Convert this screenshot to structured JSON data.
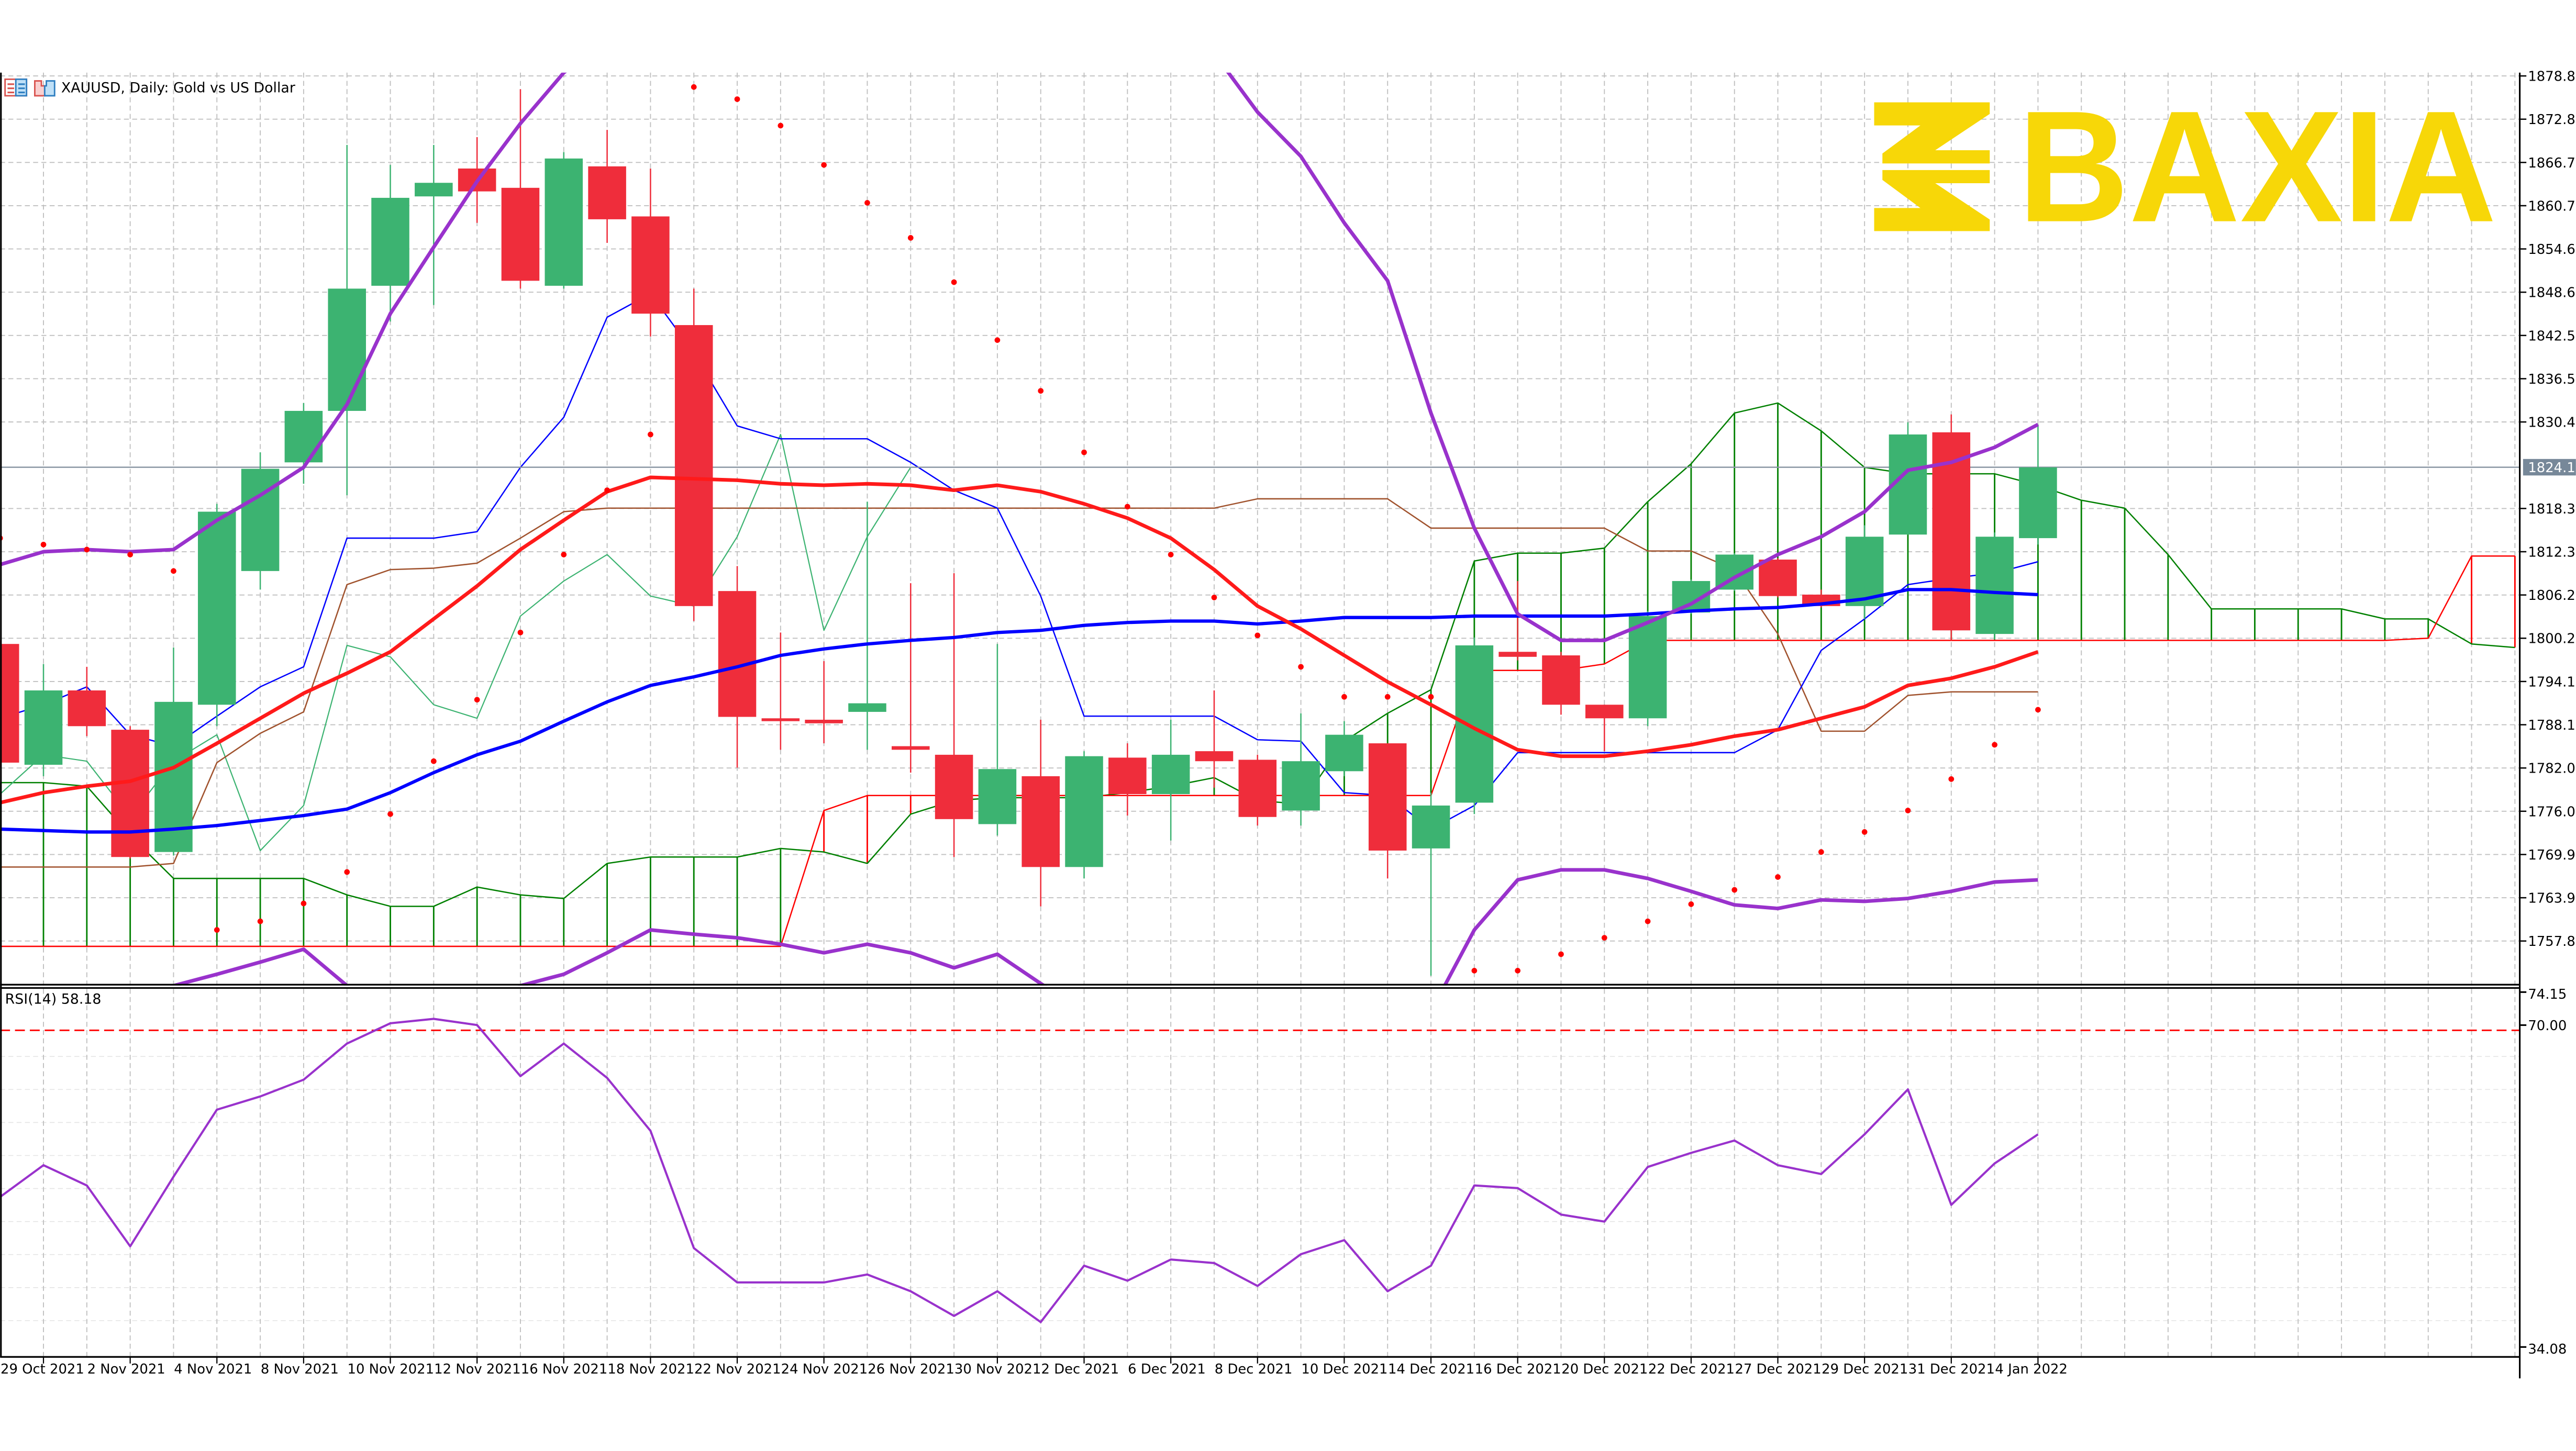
{
  "header": {
    "title": "XAUUSD, Daily:  Gold vs US Dollar",
    "icons": [
      "market-watch-icon",
      "chart-window-icon"
    ]
  },
  "logo": {
    "text": "BAXIA",
    "color": "#F7D708"
  },
  "colors": {
    "bull": "#3CB371",
    "bear": "#EF2D3B",
    "ma_fast": "#FF1A1A",
    "ma_slow": "#0000FF",
    "band": "#9932CC",
    "sar": "#FF0000",
    "tenkan": "#0000FF",
    "kijun": "#A0522D",
    "chikou": "#3CB371",
    "span_a": "#008000",
    "span_b": "#FF0000",
    "rsi": "#9932CC",
    "rsi_level": "#FF0000",
    "grid": "#C0C0C0",
    "price_tag": "#778899"
  },
  "price_axis": {
    "ticks": [
      "1878.85",
      "1872.80",
      "1866.75",
      "1860.70",
      "1854.65",
      "1848.60",
      "1842.55",
      "1836.50",
      "1830.45",
      "1818.35",
      "1812.30",
      "1806.25",
      "1800.20",
      "1794.15",
      "1788.10",
      "1782.05",
      "1776.00",
      "1769.95",
      "1763.90",
      "1757.85"
    ],
    "current_price": "1824.12"
  },
  "rsi_panel": {
    "label": "RSI(14) 58.18",
    "axis_top": "74.15",
    "level": "70.00",
    "axis_bottom": "34.08"
  },
  "x_tick_labels": [
    "29 Oct 2021",
    "2 Nov 2021",
    "4 Nov 2021",
    "8 Nov 2021",
    "10 Nov 2021",
    "12 Nov 2021",
    "16 Nov 2021",
    "18 Nov 2021",
    "22 Nov 2021",
    "24 Nov 2021",
    "26 Nov 2021",
    "30 Nov 2021",
    "2 Dec 2021",
    "6 Dec 2021",
    "8 Dec 2021",
    "10 Dec 2021",
    "14 Dec 2021",
    "16 Dec 2021",
    "20 Dec 2021",
    "22 Dec 2021",
    "27 Dec 2021",
    "29 Dec 2021",
    "31 Dec 2021",
    "4 Jan 2022"
  ],
  "chart_data": [
    {
      "type": "candlestick",
      "title": "XAUUSD, Daily:  Gold vs US Dollar",
      "ylim": [
        1751.9,
        1880.0
      ],
      "grid": true,
      "fields": [
        "open",
        "high",
        "low",
        "close"
      ],
      "candles": [
        [
          1799.4,
          1799.9,
          1782.1,
          1782.8
        ],
        [
          1782.5,
          1796.6,
          1780.9,
          1792.9
        ],
        [
          1792.9,
          1796.2,
          1786.5,
          1787.9
        ],
        [
          1787.4,
          1787.9,
          1769.4,
          1769.6
        ],
        [
          1770.3,
          1798.9,
          1769.8,
          1791.3
        ],
        [
          1790.9,
          1819.0,
          1787.9,
          1817.9
        ],
        [
          1809.6,
          1826.2,
          1807.0,
          1823.9
        ],
        [
          1824.8,
          1833.1,
          1821.8,
          1832.0
        ],
        [
          1832.0,
          1869.2,
          1820.2,
          1849.1
        ],
        [
          1849.5,
          1866.4,
          1844.5,
          1861.8
        ],
        [
          1862.0,
          1869.2,
          1846.8,
          1863.9
        ],
        [
          1865.9,
          1870.3,
          1858.3,
          1862.7
        ],
        [
          1863.2,
          1877.0,
          1849.1,
          1850.2
        ],
        [
          1849.5,
          1868.2,
          1849.1,
          1867.3
        ],
        [
          1866.2,
          1871.3,
          1855.5,
          1858.8
        ],
        [
          1859.2,
          1865.9,
          1842.4,
          1845.6
        ],
        [
          1844.0,
          1849.1,
          1802.6,
          1804.7
        ],
        [
          1806.8,
          1810.3,
          1782.1,
          1789.2
        ],
        [
          1789.0,
          1801.0,
          1784.6,
          1788.6
        ],
        [
          1788.8,
          1797.0,
          1785.5,
          1788.3
        ],
        [
          1789.9,
          1819.3,
          1784.6,
          1791.1
        ],
        [
          1785.1,
          1807.9,
          1781.4,
          1784.6
        ],
        [
          1783.9,
          1809.3,
          1769.6,
          1774.9
        ],
        [
          1774.2,
          1799.4,
          1772.6,
          1781.9
        ],
        [
          1780.9,
          1788.8,
          1762.7,
          1768.2
        ],
        [
          1768.2,
          1784.4,
          1766.6,
          1783.7
        ],
        [
          1783.5,
          1785.5,
          1775.4,
          1778.4
        ],
        [
          1778.4,
          1788.8,
          1771.9,
          1783.9
        ],
        [
          1784.4,
          1792.9,
          1779.3,
          1783.0
        ],
        [
          1783.2,
          1783.9,
          1774.0,
          1775.2
        ],
        [
          1776.1,
          1789.7,
          1774.0,
          1783.0
        ],
        [
          1781.6,
          1788.6,
          1780.9,
          1786.7
        ],
        [
          1785.5,
          1785.5,
          1766.6,
          1770.5
        ],
        [
          1770.8,
          1778.6,
          1753.0,
          1776.8
        ],
        [
          1777.2,
          1800.3,
          1775.6,
          1799.2
        ],
        [
          1798.3,
          1808.2,
          1797.1,
          1797.6
        ],
        [
          1797.8,
          1798.3,
          1789.5,
          1790.9
        ],
        [
          1790.9,
          1790.9,
          1784.4,
          1789.0
        ],
        [
          1789.0,
          1804.0,
          1787.9,
          1803.3
        ],
        [
          1803.8,
          1808.4,
          1803.6,
          1808.2
        ],
        [
          1807.0,
          1812.1,
          1806.8,
          1811.9
        ],
        [
          1811.2,
          1811.4,
          1805.9,
          1806.1
        ],
        [
          1806.3,
          1807.0,
          1804.5,
          1804.7
        ],
        [
          1804.7,
          1816.0,
          1802.9,
          1814.4
        ],
        [
          1814.7,
          1830.4,
          1814.7,
          1828.7
        ],
        [
          1829.0,
          1831.5,
          1799.9,
          1801.3
        ],
        [
          1800.8,
          1815.0,
          1800.0,
          1814.4
        ],
        [
          1814.2,
          1830.1,
          1813.3,
          1824.1
        ]
      ],
      "overlays": {
        "ma_fast": [
          1777.2,
          1778.6,
          1779.5,
          1780.2,
          1782.1,
          1785.5,
          1789.0,
          1792.5,
          1795.3,
          1798.3,
          1802.9,
          1807.5,
          1812.6,
          1816.7,
          1820.7,
          1822.7,
          1822.5,
          1822.3,
          1821.8,
          1821.6,
          1821.8,
          1821.6,
          1820.9,
          1821.6,
          1820.7,
          1819.0,
          1817.0,
          1814.2,
          1809.8,
          1804.7,
          1801.5,
          1797.8,
          1794.1,
          1790.9,
          1787.6,
          1784.6,
          1783.7,
          1783.7,
          1784.4,
          1785.3,
          1786.5,
          1787.4,
          1789.0,
          1790.6,
          1793.6,
          1794.6,
          1796.2,
          1798.3
        ],
        "ma_slow": [
          1773.5,
          1773.3,
          1773.1,
          1773.1,
          1773.5,
          1774.0,
          1774.7,
          1775.4,
          1776.3,
          1778.6,
          1781.4,
          1783.9,
          1785.8,
          1788.6,
          1791.3,
          1793.6,
          1794.8,
          1796.2,
          1797.8,
          1798.7,
          1799.4,
          1799.9,
          1800.3,
          1801.0,
          1801.3,
          1802.0,
          1802.4,
          1802.6,
          1802.6,
          1802.2,
          1802.6,
          1803.1,
          1803.1,
          1803.1,
          1803.3,
          1803.3,
          1803.3,
          1803.3,
          1803.6,
          1804.0,
          1804.3,
          1804.5,
          1805.0,
          1805.7,
          1807.0,
          1807.0,
          1806.6,
          1806.3
        ],
        "band_upper": [
          1810.5,
          1812.3,
          1812.6,
          1812.3,
          1812.6,
          1816.7,
          1820.2,
          1824.1,
          1832.9,
          1845.6,
          1854.9,
          1864.1,
          1872.2,
          1879.3,
          1884,
          1888,
          1891,
          1893,
          1894,
          1894,
          1893,
          1892,
          1891,
          1890,
          1889,
          1888,
          1887,
          1885,
          1882,
          1873.8,
          1867.6,
          1858.3,
          1850.2,
          1831.7,
          1815.6,
          1803.6,
          1799.9,
          1799.9,
          1802.4,
          1805.0,
          1808.7,
          1811.9,
          1814.4,
          1817.9,
          1823.7,
          1824.8,
          1826.9,
          1830.1
        ],
        "band_lower": [
          1745,
          1746,
          1747,
          1748,
          1751.6,
          1753.2,
          1754.9,
          1756.7,
          1751.6,
          1746,
          1742,
          1745,
          1751.6,
          1753.2,
          1756.2,
          1759.4,
          1758.8,
          1758.3,
          1757.4,
          1756.2,
          1757.4,
          1756.2,
          1754.1,
          1756.0,
          1751.9,
          1748,
          1745,
          1743,
          1742,
          1740,
          1740,
          1742,
          1745,
          1748,
          1759.4,
          1766.4,
          1767.8,
          1767.8,
          1766.6,
          1764.8,
          1762.9,
          1762.4,
          1763.6,
          1763.4,
          1763.8,
          1764.8,
          1766.1,
          1766.4
        ],
        "parabolic_sar": [
          1814.2,
          1813.3,
          1812.6,
          1811.9,
          1809.6,
          1759.4,
          1760.6,
          1763.1,
          1767.5,
          1775.6,
          1783.0,
          1791.6,
          1801.0,
          1811.9,
          1820.9,
          1828.7,
          1877.3,
          1875.6,
          1871.9,
          1866.4,
          1861.1,
          1856.2,
          1850.0,
          1841.9,
          1834.8,
          1826.2,
          1818.6,
          1811.9,
          1805.9,
          1800.6,
          1796.2,
          1792.0,
          1792.0,
          1792.0,
          1753.7,
          1753.7,
          1756.0,
          1758.3,
          1760.6,
          1763.0,
          1765.0,
          1766.8,
          1770.3,
          1773.1,
          1776.1,
          1780.5,
          1785.3,
          1790.2
        ],
        "tenkan": [
          1789.0,
          1790.9,
          1793.4,
          1786.7,
          1785.1,
          1789.3,
          1793.4,
          1796.2,
          1814.2,
          1814.2,
          1814.2,
          1815.1,
          1824.1,
          1831.1,
          1845.1,
          1848.4,
          1840.1,
          1829.9,
          1828.1,
          1828.1,
          1828.1,
          1824.8,
          1820.9,
          1818.4,
          1806.1,
          1789.3,
          1789.3,
          1789.3,
          1789.3,
          1786.0,
          1785.8,
          1778.6,
          1778.2,
          1773.5,
          1776.8,
          1784.2,
          1784.2,
          1784.2,
          1784.2,
          1784.2,
          1784.2,
          1787.4,
          1798.5,
          1802.9,
          1807.7,
          1808.6,
          1809.3,
          1810.9
        ],
        "kijun": [
          1768.2,
          1768.2,
          1768.2,
          1768.2,
          1768.7,
          1782.8,
          1786.9,
          1789.9,
          1807.7,
          1809.8,
          1810.0,
          1810.7,
          1814.2,
          1817.9,
          1818.4,
          1818.4,
          1818.4,
          1818.4,
          1818.4,
          1818.4,
          1818.4,
          1818.4,
          1818.4,
          1818.4,
          1818.4,
          1818.4,
          1818.4,
          1818.4,
          1818.4,
          1819.7,
          1819.7,
          1819.7,
          1819.7,
          1815.6,
          1815.6,
          1815.6,
          1815.6,
          1815.6,
          1812.4,
          1812.4,
          1809.8,
          1800.8,
          1787.2,
          1787.2,
          1792.2,
          1792.7,
          1792.7,
          1792.7
        ],
        "span_a": [
          1780.0,
          1780.0,
          1779.5,
          1772.6,
          1766.6,
          1766.6,
          1766.6,
          1766.6,
          1764.3,
          1762.7,
          1762.7,
          1765.4,
          1764.3,
          1763.8,
          1768.7,
          1769.6,
          1769.6,
          1769.6,
          1770.8,
          1770.3,
          1768.7,
          1775.6,
          1777.5,
          1777.9,
          1777.9,
          1777.9,
          1778.6,
          1779.5,
          1780.7,
          1777.5,
          1777.0,
          1785.8,
          1789.7,
          1793.0,
          1811.0,
          1812.1,
          1812.1,
          1812.8,
          1819.3,
          1824.6,
          1831.7,
          1833.1,
          1829.2,
          1824.1,
          1823.2,
          1823.2,
          1823.2,
          1821.6,
          1819.5,
          1818.4,
          1811.9,
          1804.3,
          1804.3,
          1804.3,
          1804.3,
          1802.9,
          1802.9,
          1799.4,
          1798.9
        ],
        "span_b": [
          1757.1,
          1757.1,
          1757.1,
          1757.1,
          1757.1,
          1757.1,
          1757.1,
          1757.1,
          1757.1,
          1757.1,
          1757.1,
          1757.1,
          1757.1,
          1757.1,
          1757.1,
          1757.1,
          1757.1,
          1757.1,
          1757.1,
          1776.1,
          1778.2,
          1778.2,
          1778.2,
          1778.2,
          1778.2,
          1778.2,
          1778.2,
          1778.2,
          1778.2,
          1778.2,
          1778.2,
          1778.2,
          1778.2,
          1778.2,
          1795.7,
          1795.7,
          1795.7,
          1796.6,
          1799.9,
          1799.9,
          1799.9,
          1799.9,
          1799.9,
          1799.9,
          1799.9,
          1799.9,
          1799.9,
          1799.9,
          1799.9,
          1799.9,
          1799.9,
          1799.9,
          1799.9,
          1799.9,
          1799.9,
          1799.9,
          1800.2,
          1811.7,
          1811.7
        ]
      }
    },
    {
      "type": "line",
      "title": "RSI(14) 58.18",
      "ylim": [
        34.08,
        74.15
      ],
      "levels": [
        70
      ],
      "values": [
        51.1,
        54.7,
        52.4,
        45.5,
        53.4,
        61.0,
        62.5,
        64.4,
        68.5,
        70.8,
        71.3,
        70.6,
        64.8,
        68.5,
        64.6,
        58.6,
        45.3,
        41.4,
        41.4,
        41.4,
        42.3,
        40.4,
        37.6,
        40.4,
        36.9,
        43.3,
        41.6,
        44.0,
        43.6,
        41.0,
        44.6,
        46.2,
        40.4,
        43.3,
        52.4,
        52.1,
        49.1,
        48.3,
        54.5,
        56.1,
        57.5,
        54.7,
        53.7,
        58.2,
        63.3,
        50.2,
        54.9,
        58.2
      ]
    }
  ]
}
